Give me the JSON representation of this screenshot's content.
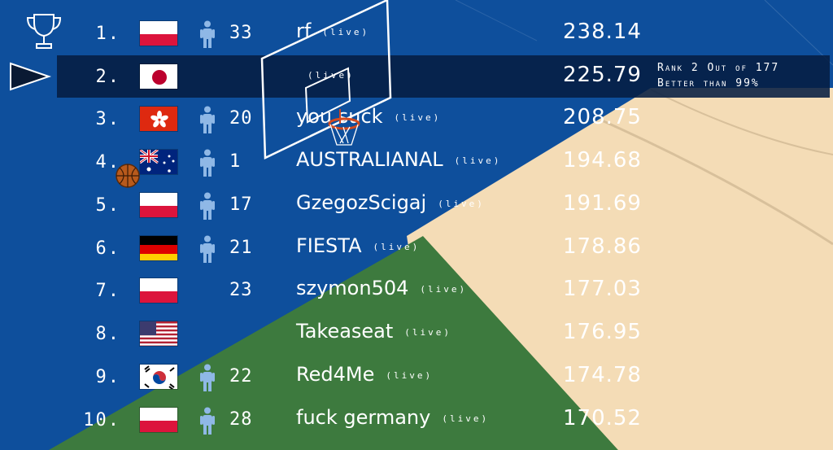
{
  "leaderboard": {
    "rows": [
      {
        "rank": "1.",
        "flag": "poland",
        "age": "33",
        "player": true,
        "name": "rf",
        "live": "(live)",
        "score": "238.14"
      },
      {
        "rank": "2.",
        "flag": "japan",
        "age": "",
        "player": false,
        "name": "",
        "live": "(live)",
        "score": "225.79",
        "highlight": true
      },
      {
        "rank": "3.",
        "flag": "hongkong",
        "age": "20",
        "player": true,
        "name": "you suck",
        "live": "(live)",
        "score": "208.75"
      },
      {
        "rank": "4.",
        "flag": "australia",
        "age": "1",
        "player": true,
        "name": "AUSTRALIANAL",
        "live": "(live)",
        "score": "194.68"
      },
      {
        "rank": "5.",
        "flag": "poland",
        "age": "17",
        "player": true,
        "name": "GzegozScigaj",
        "live": "(live)",
        "score": "191.69"
      },
      {
        "rank": "6.",
        "flag": "germany",
        "age": "21",
        "player": true,
        "name": "FIESTA",
        "live": "(live)",
        "score": "178.86"
      },
      {
        "rank": "7.",
        "flag": "poland",
        "age": "23",
        "player": false,
        "name": "szymon504",
        "live": "(live)",
        "score": "177.03"
      },
      {
        "rank": "8.",
        "flag": "usa",
        "age": "",
        "player": false,
        "name": "Takeaseat",
        "live": "(live)",
        "score": "176.95"
      },
      {
        "rank": "9.",
        "flag": "southkorea",
        "age": "22",
        "player": true,
        "name": "Red4Me",
        "live": "(live)",
        "score": "174.78"
      },
      {
        "rank": "10.",
        "flag": "poland",
        "age": "28",
        "player": true,
        "name": "fuck germany",
        "live": "(live)",
        "score": "170.52"
      }
    ]
  },
  "rank_info": {
    "line1": "Rank 2 Out of 177",
    "line2": "Better than 99%"
  },
  "colors": {
    "background": "#0e4f9c",
    "court": "#f4dcb6",
    "grass": "#3d7a3e",
    "highlight": "#061e42",
    "person": "#8fb8e6"
  }
}
